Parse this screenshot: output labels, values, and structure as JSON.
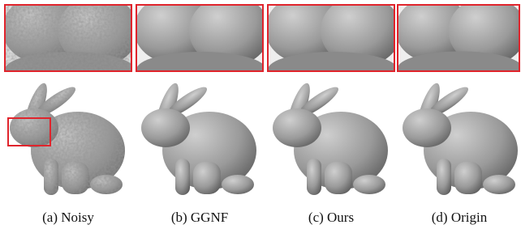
{
  "panels": [
    {
      "caption": "(a) Noisy"
    },
    {
      "caption": "(b) GGNF"
    },
    {
      "caption": "(c) Ours"
    },
    {
      "caption": "(d) Origin"
    }
  ]
}
